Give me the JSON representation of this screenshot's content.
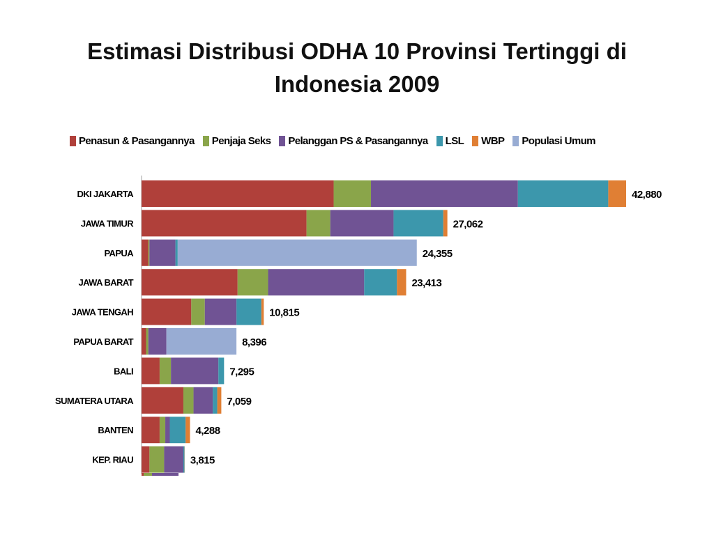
{
  "slide": {
    "title_line1": "Estimasi Distribusi ODHA 10 Provinsi Tertinggi di",
    "title_line2": "Indonesia 2009"
  },
  "chart_data": {
    "type": "bar",
    "orientation": "horizontal",
    "stacked": true,
    "legend_position": "top",
    "grid": false,
    "categories": [
      "DKI JAKARTA",
      "JAWA TIMUR",
      "PAPUA",
      "JAWA BARAT",
      "JAWA TENGAH",
      "PAPUA BARAT",
      "BALI",
      "SUMATERA UTARA",
      "BANTEN",
      "KEP. RIAU"
    ],
    "total_labels": [
      "42,880",
      "27,062",
      "24,355",
      "23,413",
      "10,815",
      "8,396",
      "7,295",
      "7,059",
      "4,288",
      "3,815"
    ],
    "totals": [
      42880,
      27062,
      24355,
      23413,
      10815,
      8396,
      7295,
      7059,
      4288,
      3815
    ],
    "xlim": [
      0,
      45000
    ],
    "series": [
      {
        "name": "Penasun & Pasangannya",
        "color": "#b0403a",
        "values": [
          17000,
          14600,
          600,
          8500,
          4400,
          400,
          1600,
          3700,
          1600,
          700
        ]
      },
      {
        "name": "Penjaja Seks",
        "color": "#8aa54a",
        "values": [
          3300,
          2100,
          100,
          2700,
          1200,
          200,
          1000,
          900,
          500,
          1300
        ]
      },
      {
        "name": "Pelanggan PS & Pasangannya",
        "color": "#705394",
        "values": [
          13000,
          5600,
          2300,
          8500,
          2800,
          1600,
          4200,
          1700,
          400,
          1700
        ]
      },
      {
        "name": "LSL",
        "color": "#3c97ac",
        "values": [
          8000,
          4400,
          200,
          2900,
          2200,
          0,
          500,
          400,
          1400,
          100
        ]
      },
      {
        "name": "WBP",
        "color": "#e07f34",
        "values": [
          1580,
          362,
          0,
          813,
          215,
          0,
          0,
          359,
          388,
          15
        ]
      },
      {
        "name": "Populasi Umum",
        "color": "#98acd3",
        "values": [
          0,
          0,
          21155,
          0,
          0,
          6196,
          0,
          0,
          0,
          0
        ]
      }
    ]
  }
}
